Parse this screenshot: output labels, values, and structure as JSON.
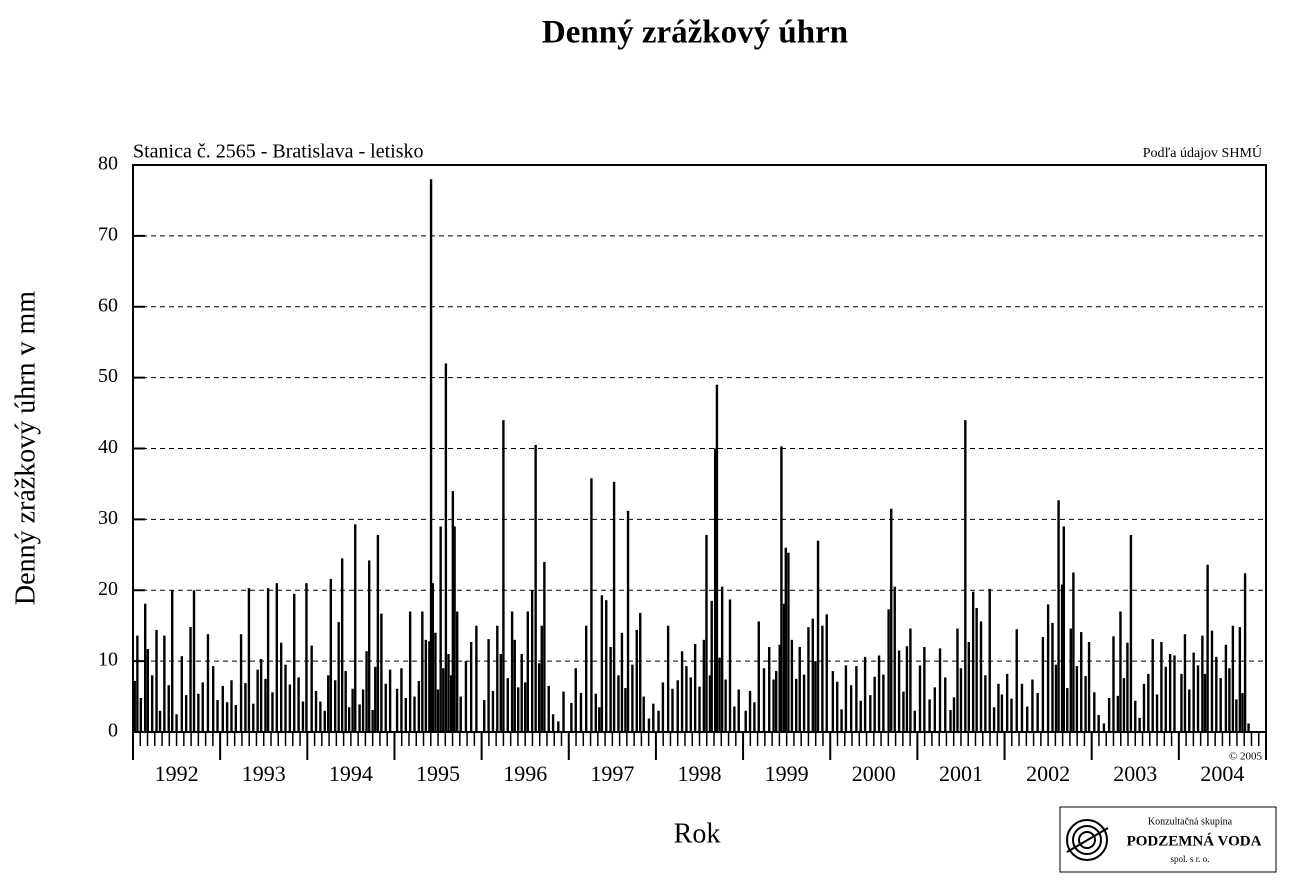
{
  "chart_data": {
    "type": "bar",
    "title": "Denný zrážkový úhrn",
    "subtitle": "Stanica č. 2565 - Bratislava - letisko",
    "source": "Podľa údajov SHMÚ",
    "copyright": "© 2005",
    "y_label": "Denný zrážkový úhrn v mm",
    "x_label": "Rok",
    "color": "#000000",
    "grid": true,
    "xlim": [
      1992,
      2005
    ],
    "ylim": [
      0,
      80
    ],
    "yticks": [
      0,
      10,
      20,
      30,
      40,
      50,
      60,
      70,
      80
    ],
    "xticks": [
      {
        "value": 1992.5,
        "label": "1992"
      },
      {
        "value": 1993.5,
        "label": "1993"
      },
      {
        "value": 1994.5,
        "label": "1994"
      },
      {
        "value": 1995.5,
        "label": "1995"
      },
      {
        "value": 1996.5,
        "label": "1996"
      },
      {
        "value": 1997.5,
        "label": "1997"
      },
      {
        "value": 1998.5,
        "label": "1998"
      },
      {
        "value": 1999.5,
        "label": "1999"
      },
      {
        "value": 2000.5,
        "label": "2000"
      },
      {
        "value": 2001.5,
        "label": "2001"
      },
      {
        "value": 2002.5,
        "label": "2002"
      },
      {
        "value": 2003.5,
        "label": "2003"
      },
      {
        "value": 2004.5,
        "label": "2004"
      }
    ],
    "x": [
      1992.02,
      1992.05,
      1992.09,
      1992.14,
      1992.17,
      1992.22,
      1992.27,
      1992.31,
      1992.36,
      1992.41,
      1992.45,
      1992.5,
      1992.56,
      1992.61,
      1992.66,
      1992.7,
      1992.75,
      1992.8,
      1992.86,
      1992.92,
      1992.97,
      1993.03,
      1993.08,
      1993.13,
      1993.18,
      1993.24,
      1993.29,
      1993.33,
      1993.38,
      1993.43,
      1993.47,
      1993.52,
      1993.55,
      1993.6,
      1993.65,
      1993.7,
      1993.75,
      1993.8,
      1993.85,
      1993.9,
      1993.95,
      1993.99,
      1994.05,
      1994.1,
      1994.15,
      1994.2,
      1994.24,
      1994.27,
      1994.32,
      1994.36,
      1994.4,
      1994.44,
      1994.48,
      1994.52,
      1994.55,
      1994.6,
      1994.64,
      1994.68,
      1994.71,
      1994.75,
      1994.78,
      1994.81,
      1994.85,
      1994.9,
      1994.95,
      1995.03,
      1995.08,
      1995.13,
      1995.18,
      1995.23,
      1995.28,
      1995.32,
      1995.36,
      1995.4,
      1995.42,
      1995.44,
      1995.47,
      1995.5,
      1995.53,
      1995.56,
      1995.59,
      1995.62,
      1995.65,
      1995.67,
      1995.69,
      1995.72,
      1995.76,
      1995.82,
      1995.88,
      1995.94,
      1996.03,
      1996.08,
      1996.13,
      1996.18,
      1996.22,
      1996.25,
      1996.3,
      1996.35,
      1996.38,
      1996.42,
      1996.46,
      1996.5,
      1996.53,
      1996.58,
      1996.62,
      1996.66,
      1996.69,
      1996.72,
      1996.77,
      1996.82,
      1996.88,
      1996.94,
      1997.03,
      1997.08,
      1997.14,
      1997.2,
      1997.26,
      1997.31,
      1997.35,
      1997.38,
      1997.43,
      1997.48,
      1997.52,
      1997.57,
      1997.61,
      1997.65,
      1997.68,
      1997.73,
      1997.78,
      1997.82,
      1997.86,
      1997.92,
      1997.97,
      1998.03,
      1998.08,
      1998.14,
      1998.19,
      1998.25,
      1998.3,
      1998.35,
      1998.4,
      1998.45,
      1998.5,
      1998.55,
      1998.58,
      1998.62,
      1998.64,
      1998.68,
      1998.7,
      1998.73,
      1998.76,
      1998.8,
      1998.85,
      1998.9,
      1998.95,
      1999.03,
      1999.08,
      1999.13,
      1999.18,
      1999.24,
      1999.3,
      1999.35,
      1999.38,
      1999.42,
      1999.44,
      1999.47,
      1999.49,
      1999.52,
      1999.56,
      1999.61,
      1999.65,
      1999.7,
      1999.75,
      1999.8,
      1999.83,
      1999.86,
      1999.91,
      1999.96,
      2000.03,
      2000.08,
      2000.13,
      2000.18,
      2000.24,
      2000.3,
      2000.35,
      2000.4,
      2000.46,
      2000.51,
      2000.56,
      2000.61,
      2000.67,
      2000.7,
      2000.74,
      2000.79,
      2000.84,
      2000.88,
      2000.92,
      2000.97,
      2001.03,
      2001.08,
      2001.14,
      2001.2,
      2001.26,
      2001.32,
      2001.38,
      2001.42,
      2001.46,
      2001.5,
      2001.55,
      2001.59,
      2001.64,
      2001.68,
      2001.73,
      2001.78,
      2001.83,
      2001.88,
      2001.93,
      2001.97,
      2002.03,
      2002.08,
      2002.14,
      2002.2,
      2002.26,
      2002.32,
      2002.38,
      2002.44,
      2002.5,
      2002.55,
      2002.59,
      2002.62,
      2002.66,
      2002.68,
      2002.72,
      2002.76,
      2002.79,
      2002.83,
      2002.88,
      2002.93,
      2002.97,
      2003.03,
      2003.08,
      2003.14,
      2003.2,
      2003.25,
      2003.3,
      2003.33,
      2003.37,
      2003.41,
      2003.45,
      2003.5,
      2003.55,
      2003.6,
      2003.65,
      2003.7,
      2003.75,
      2003.8,
      2003.85,
      2003.9,
      2003.95,
      2004.03,
      2004.07,
      2004.12,
      2004.17,
      2004.22,
      2004.27,
      2004.3,
      2004.33,
      2004.38,
      2004.43,
      2004.48,
      2004.54,
      2004.58,
      2004.62,
      2004.66,
      2004.7,
      2004.73,
      2004.76,
      2004.8
    ],
    "values": [
      7.2,
      13.6,
      4.8,
      18.1,
      11.7,
      8,
      14.4,
      3,
      13.6,
      6.6,
      20,
      2.5,
      10.7,
      5.2,
      14.8,
      20,
      5.4,
      7,
      13.8,
      9.3,
      4.5,
      6.5,
      4.2,
      7.3,
      3.8,
      13.8,
      6.9,
      20.3,
      4,
      8.8,
      10.3,
      7.5,
      20.3,
      5.6,
      21,
      12.6,
      9.5,
      6.7,
      19.5,
      7.7,
      4.3,
      21,
      12.2,
      5.8,
      4.3,
      3,
      8,
      21.6,
      7.3,
      15.5,
      24.5,
      8.6,
      3.5,
      6.1,
      29.3,
      3.9,
      6,
      11.4,
      24.2,
      3.1,
      9.2,
      27.8,
      16.7,
      6.8,
      8.8,
      6.1,
      9,
      4.8,
      17,
      5,
      7.2,
      17,
      13,
      12.8,
      78,
      21,
      14,
      6,
      29,
      9,
      52,
      11,
      8,
      34,
      29,
      17,
      5,
      10,
      12.7,
      15,
      4.5,
      13.1,
      5.8,
      15,
      11,
      44,
      7.6,
      17,
      13,
      6.3,
      11,
      7,
      17,
      20,
      40.5,
      9.7,
      15,
      24,
      6.5,
      2.5,
      1.5,
      5.7,
      4.1,
      9,
      5.5,
      15,
      35.8,
      5.4,
      3.5,
      19.3,
      18.6,
      12,
      35.3,
      8,
      14,
      6.2,
      31.2,
      9.5,
      14.4,
      16.8,
      5,
      1.9,
      4,
      3,
      7,
      15,
      6.1,
      7.3,
      11.4,
      9.3,
      7.7,
      12.4,
      6.4,
      13,
      27.8,
      8,
      18.5,
      40,
      49,
      10.5,
      20.5,
      7.4,
      18.7,
      3.6,
      6,
      3,
      5.8,
      4.2,
      15.6,
      9,
      12,
      7.4,
      8.6,
      12.3,
      40.3,
      18.1,
      26,
      25.3,
      13,
      7.5,
      12,
      8.1,
      14.8,
      16,
      10,
      27,
      15,
      16.6,
      8.6,
      7.1,
      3.2,
      9.4,
      6.6,
      9.3,
      4.4,
      10.6,
      5.2,
      7.8,
      10.8,
      8.1,
      17.3,
      31.5,
      20.5,
      11.5,
      5.7,
      12.1,
      14.6,
      3,
      9.4,
      12,
      4.6,
      6.3,
      11.8,
      7.7,
      3.1,
      4.9,
      14.6,
      9,
      44,
      12.7,
      19.8,
      17.5,
      15.6,
      8,
      20.2,
      3.5,
      6.8,
      5.3,
      8.2,
      4.7,
      14.5,
      6.8,
      3.6,
      7.4,
      5.5,
      13.4,
      18,
      15.4,
      9.5,
      32.7,
      20.8,
      29,
      6.2,
      14.6,
      22.5,
      9.3,
      14.1,
      7.9,
      12.7,
      5.6,
      2.4,
      1.2,
      4.8,
      13.5,
      5.1,
      17,
      7.6,
      12.6,
      27.8,
      4.4,
      2,
      6.8,
      8.2,
      13.1,
      5.3,
      12.7,
      9.2,
      11,
      10.8,
      8.2,
      13.8,
      6,
      11.2,
      9.4,
      13.6,
      8.2,
      23.6,
      14.3,
      10.6,
      7.6,
      12.3,
      9,
      15,
      4.6,
      14.8,
      5.5,
      22.4,
      1.2
    ]
  },
  "logo": {
    "line1": "Konzultačná skupina",
    "line2": "PODZEMNÁ VODA",
    "line3": "spol. s r. o."
  }
}
